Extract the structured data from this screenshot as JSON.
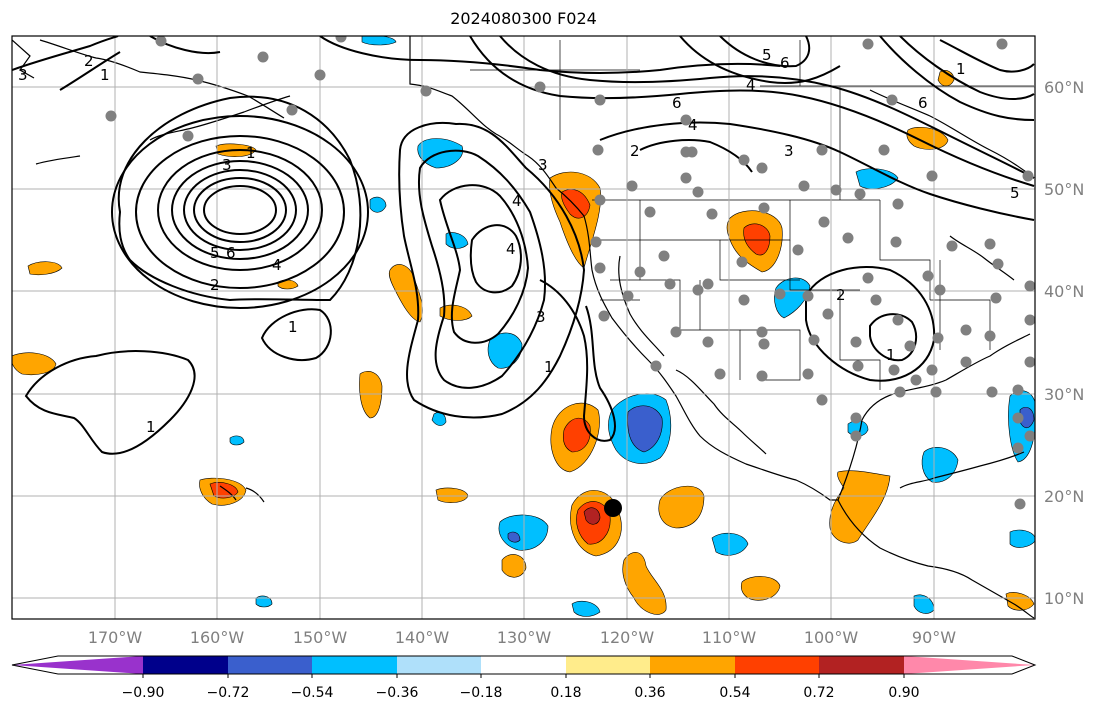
{
  "title": "2024080300 F024",
  "lat_labels": [
    "60°N",
    "50°N",
    "40°N",
    "30°N",
    "20°N",
    "10°N"
  ],
  "lon_labels": [
    "170°W",
    "160°W",
    "150°W",
    "140°W",
    "130°W",
    "120°W",
    "110°W",
    "100°W",
    "90°W"
  ],
  "colorbar": {
    "ticks": [
      "−0.90",
      "−0.72",
      "−0.54",
      "−0.36",
      "−0.18",
      "0.18",
      "0.36",
      "0.54",
      "0.72",
      "0.90"
    ],
    "colors": [
      "#9932cc",
      "#00008b",
      "#3a5fcd",
      "#00bfff",
      "#afe0fa",
      "#ffffff",
      "#ffec8b",
      "#ffa500",
      "#ff4000",
      "#b22222",
      "#ff88aa"
    ]
  },
  "contour_labels": [
    "3",
    "2",
    "1",
    "1",
    "3",
    "5",
    "6",
    "4",
    "2",
    "1",
    "3",
    "4",
    "4",
    "3",
    "1",
    "6",
    "4",
    "5",
    "6",
    "2",
    "3",
    "5",
    "1",
    "6",
    "2",
    "1"
  ],
  "colors": {
    "contour": "#000000",
    "station": "#808080",
    "grid": "#b0b0b0",
    "storm_marker": "#000000"
  }
}
